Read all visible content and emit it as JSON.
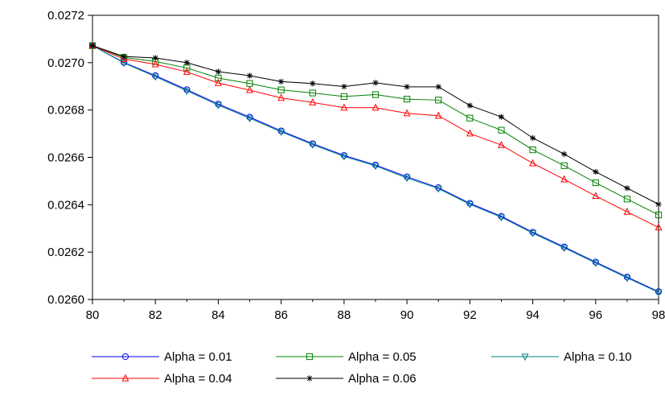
{
  "chart_data": {
    "type": "line",
    "title": "",
    "xlabel": "",
    "ylabel": "",
    "x": [
      80,
      81,
      82,
      83,
      84,
      85,
      86,
      87,
      88,
      89,
      90,
      91,
      92,
      93,
      94,
      95,
      96,
      97,
      98
    ],
    "xlim": [
      80,
      98
    ],
    "ylim": [
      0.026,
      0.0272
    ],
    "x_ticks": [
      "80",
      "82",
      "84",
      "86",
      "88",
      "90",
      "92",
      "94",
      "96",
      "98"
    ],
    "y_ticks": [
      "0.0260",
      "0.0262",
      "0.0264",
      "0.0266",
      "0.0268",
      "0.0270",
      "0.0272"
    ],
    "grid": false,
    "legend_position": "bottom",
    "series": [
      {
        "name": "Alpha = 0.01",
        "color": "#0000ff",
        "marker": "circle",
        "values": [
          0.027072,
          0.027001,
          0.026945,
          0.026886,
          0.026825,
          0.02677,
          0.026712,
          0.026658,
          0.026608,
          0.026568,
          0.026518,
          0.026472,
          0.026406,
          0.026351,
          0.026284,
          0.026222,
          0.026158,
          0.026095,
          0.026033
        ]
      },
      {
        "name": "Alpha = 0.05",
        "color": "#008000",
        "marker": "square",
        "values": [
          0.027072,
          0.027022,
          0.027005,
          0.026978,
          0.026935,
          0.026912,
          0.026885,
          0.026872,
          0.026857,
          0.026865,
          0.026846,
          0.026842,
          0.026766,
          0.026715,
          0.026632,
          0.026565,
          0.026493,
          0.026424,
          0.026357
        ]
      },
      {
        "name": "Alpha = 0.10",
        "color": "#008080",
        "marker": "triangle-down",
        "values": [
          0.027072,
          0.026999,
          0.026941,
          0.026881,
          0.026821,
          0.026765,
          0.026708,
          0.026654,
          0.026604,
          0.026564,
          0.026513,
          0.026468,
          0.026402,
          0.026347,
          0.02628,
          0.026218,
          0.026154,
          0.026091,
          0.02603
        ]
      },
      {
        "name": "Alpha = 0.04",
        "color": "#ff0000",
        "marker": "triangle-up",
        "values": [
          0.027072,
          0.027015,
          0.026993,
          0.026961,
          0.026914,
          0.026884,
          0.026851,
          0.026832,
          0.02681,
          0.02681,
          0.026786,
          0.026776,
          0.026701,
          0.026652,
          0.026575,
          0.026507,
          0.026437,
          0.02637,
          0.026304
        ]
      },
      {
        "name": "Alpha = 0.06",
        "color": "#000000",
        "marker": "star",
        "values": [
          0.027072,
          0.027026,
          0.02702,
          0.027,
          0.026962,
          0.026945,
          0.02692,
          0.026912,
          0.026899,
          0.026915,
          0.026898,
          0.026898,
          0.026819,
          0.026771,
          0.026682,
          0.026614,
          0.026539,
          0.02647,
          0.026402
        ]
      }
    ]
  }
}
